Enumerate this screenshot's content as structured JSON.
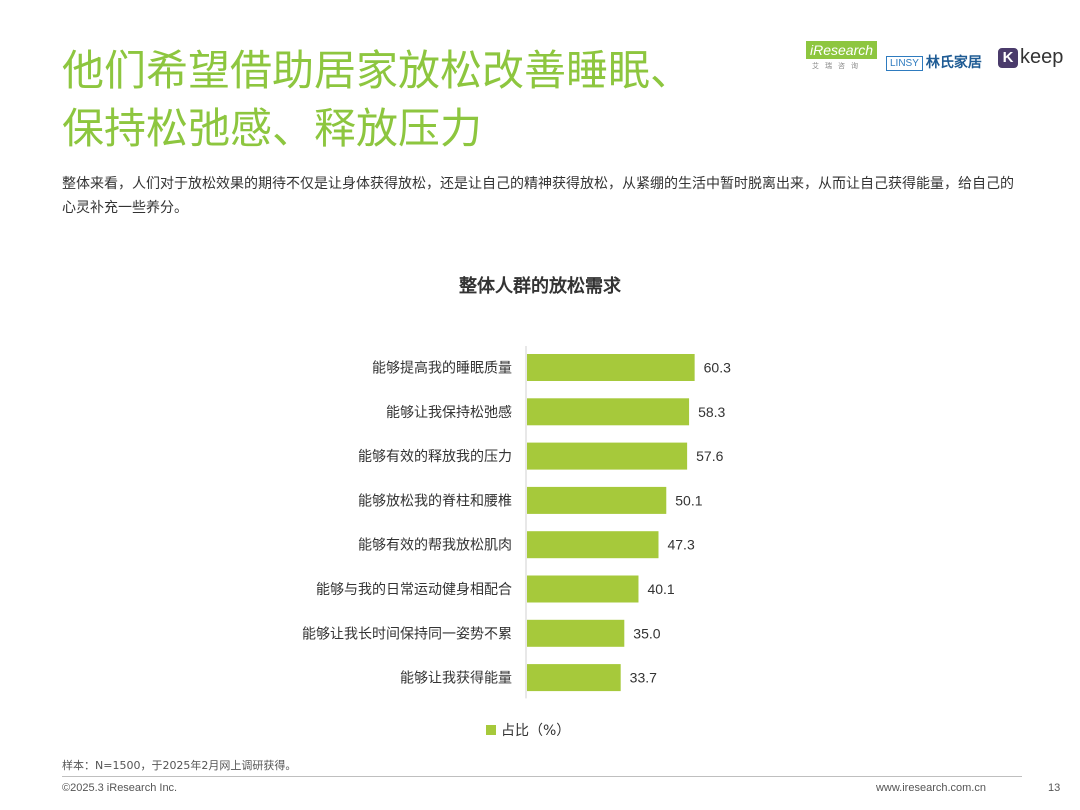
{
  "header": {
    "title_line1": "他们希望借助居家放松改善睡眠、",
    "title_line2": "保持松弛感、释放压力",
    "logos": {
      "iresearch": "iResearch",
      "iresearch_sub": "艾瑞咨询",
      "linsy": "LINSY",
      "linsy_cn": "林氏家居",
      "keep_mark": "K",
      "keep": "keep"
    }
  },
  "description": "整体来看，人们对于放松效果的期待不仅是让身体获得放松，还是让自己的精神获得放松，从紧绷的生活中暂时脱离出来，从而让自己获得能量，给自己的心灵补充一些养分。",
  "chart_data": {
    "type": "bar",
    "orientation": "horizontal",
    "title": "整体人群的放松需求",
    "categories": [
      "能够提高我的睡眠质量",
      "能够让我保持松弛感",
      "能够有效的释放我的压力",
      "能够放松我的脊柱和腰椎",
      "能够有效的帮我放松肌肉",
      "能够与我的日常运动健身相配合",
      "能够让我长时间保持同一姿势不累",
      "能够让我获得能量"
    ],
    "series": [
      {
        "name": "占比（%）",
        "values": [
          60.3,
          58.3,
          57.6,
          50.1,
          47.3,
          40.1,
          35.0,
          33.7
        ]
      }
    ],
    "value_labels": [
      "60.3",
      "58.3",
      "57.6",
      "50.1",
      "47.3",
      "40.1",
      "35.0",
      "33.7"
    ],
    "xlim": [
      0,
      100
    ],
    "grid": false,
    "legend_position": "bottom",
    "bar_color": "#a6c93b"
  },
  "legend": {
    "label": "占比（%）"
  },
  "footer": {
    "sample": "样本：N=1500，于2025年2月网上调研获得。",
    "copyright": "©2025.3 iResearch Inc.",
    "website": "www.iresearch.com.cn",
    "page": "13"
  },
  "colors": {
    "accent": "#8dc63f",
    "bar": "#a6c93b"
  }
}
